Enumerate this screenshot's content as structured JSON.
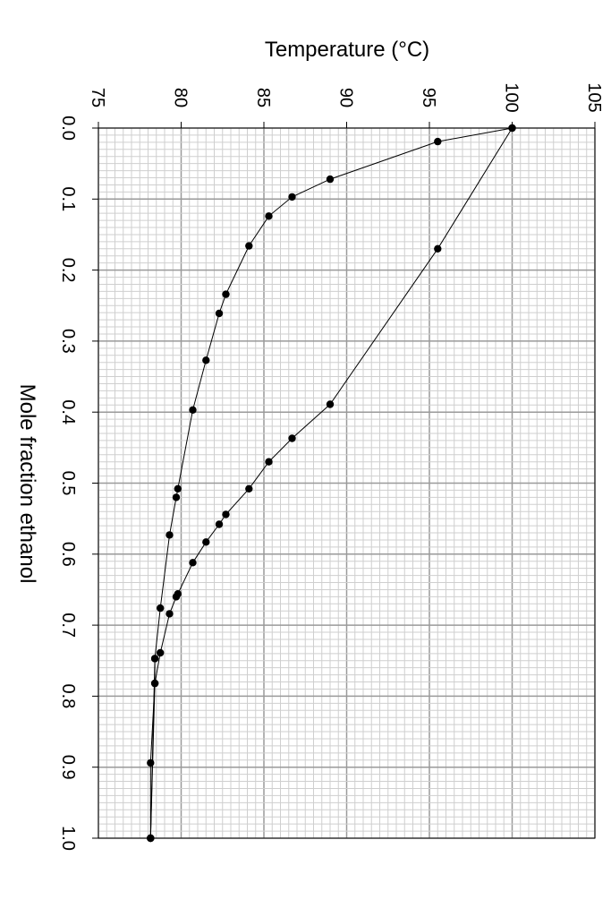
{
  "chart_data": {
    "type": "line",
    "xlabel": "Temperature (°C)",
    "ylabel": "Mole fraction ethanol",
    "xlim": [
      75,
      105
    ],
    "ylim": [
      0.0,
      1.0
    ],
    "x_ticks": [
      "75",
      "80",
      "85",
      "90",
      "95",
      "100",
      "105"
    ],
    "y_ticks": [
      "0.0",
      "0.1",
      "0.2",
      "0.3",
      "0.4",
      "0.5",
      "0.6",
      "0.7",
      "0.8",
      "0.9",
      "1.0"
    ],
    "grid": true,
    "minor_grid_step_x": 0.5,
    "minor_grid_step_y": 0.01,
    "line_color": "#000000",
    "marker": "filled-circle",
    "series": [
      {
        "points": [
          [
            100.0,
            0.0
          ],
          [
            95.5,
            0.019
          ],
          [
            89.0,
            0.072
          ],
          [
            86.7,
            0.097
          ],
          [
            85.3,
            0.124
          ],
          [
            84.1,
            0.166
          ],
          [
            82.7,
            0.234
          ],
          [
            82.3,
            0.261
          ],
          [
            81.5,
            0.327
          ],
          [
            80.7,
            0.397
          ],
          [
            79.8,
            0.508
          ],
          [
            79.7,
            0.52
          ],
          [
            79.3,
            0.573
          ],
          [
            78.74,
            0.676
          ],
          [
            78.41,
            0.747
          ],
          [
            78.15,
            1.0
          ]
        ]
      },
      {
        "points": [
          [
            100.0,
            0.0
          ],
          [
            95.5,
            0.17
          ],
          [
            89.0,
            0.389
          ],
          [
            86.7,
            0.437
          ],
          [
            85.3,
            0.47
          ],
          [
            84.1,
            0.508
          ],
          [
            82.7,
            0.544
          ],
          [
            82.3,
            0.558
          ],
          [
            81.5,
            0.583
          ],
          [
            80.7,
            0.612
          ],
          [
            79.8,
            0.656
          ],
          [
            79.7,
            0.66
          ],
          [
            79.3,
            0.684
          ],
          [
            78.74,
            0.739
          ],
          [
            78.41,
            0.782
          ],
          [
            78.15,
            1.0
          ]
        ]
      },
      {
        "points": [
          [
            78.41,
            0.747
          ],
          [
            78.41,
            0.782
          ],
          [
            78.15,
            0.894
          ],
          [
            78.15,
            1.0
          ]
        ]
      }
    ]
  }
}
